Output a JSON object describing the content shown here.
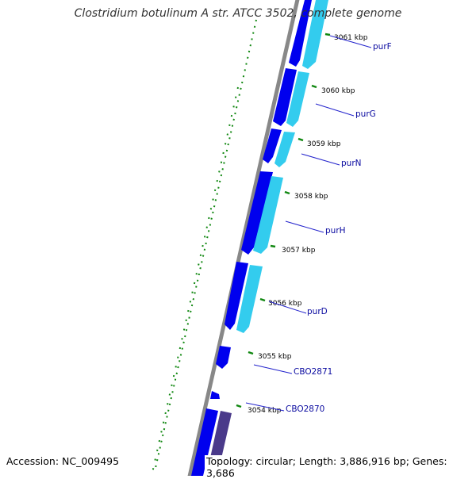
{
  "title": "Clostridium botulinum A str. ATCC 3502, complete genome",
  "accession": "Accession: NC_009495",
  "summary": "Topology: circular; Length: 3,886,916 bp; Genes: 3,686",
  "colors": {
    "backbone": "#888888",
    "gene_dark": "#0000ee",
    "gene_light": "#33ccee",
    "gene_purple": "#4a3a8a",
    "ticks": "#118811",
    "label_line": "#2222cc"
  },
  "ticks": [
    "3061 kbp",
    "3060 kbp",
    "3059 kbp",
    "3058 kbp",
    "3057 kbp",
    "3056 kbp",
    "3055 kbp",
    "3054 kbp"
  ],
  "genes": [
    "purF",
    "purG",
    "purN",
    "purH",
    "purD",
    "CBO2871",
    "CBO2870"
  ]
}
